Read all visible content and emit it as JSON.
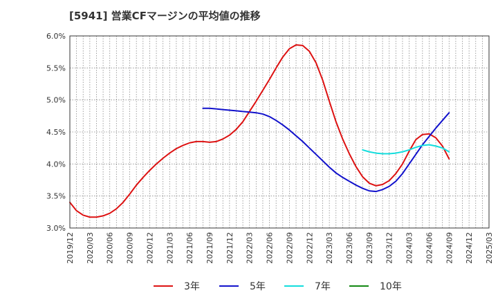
{
  "chart_data": {
    "type": "line",
    "title": "[5941]  営業CFマージンの平均値の推移",
    "xlabel": "",
    "ylabel": "",
    "ylim": [
      3.0,
      6.0
    ],
    "yticks": [
      3.0,
      3.5,
      4.0,
      4.5,
      5.0,
      5.5,
      6.0
    ],
    "ytick_labels": [
      "3.0%",
      "3.5%",
      "4.0%",
      "4.5%",
      "5.0%",
      "5.5%",
      "6.0%"
    ],
    "xlim": [
      "2019/12",
      "2025/03"
    ],
    "xtick_labels": [
      "2019/12",
      "2020/03",
      "2020/06",
      "2020/09",
      "2020/12",
      "2021/03",
      "2021/06",
      "2021/09",
      "2021/12",
      "2022/03",
      "2022/06",
      "2022/09",
      "2022/12",
      "2023/03",
      "2023/06",
      "2023/09",
      "2023/12",
      "2024/03",
      "2024/06",
      "2024/09",
      "2024/12",
      "2025/03"
    ],
    "grid": true,
    "legend_position": "bottom",
    "series": [
      {
        "name": "3年",
        "color": "#dd1111",
        "x": [
          "2019/12",
          "2020/01",
          "2020/02",
          "2020/03",
          "2020/04",
          "2020/05",
          "2020/06",
          "2020/07",
          "2020/08",
          "2020/09",
          "2020/10",
          "2020/11",
          "2020/12",
          "2021/01",
          "2021/02",
          "2021/03",
          "2021/04",
          "2021/05",
          "2021/06",
          "2021/07",
          "2021/08",
          "2021/09",
          "2021/10",
          "2021/11",
          "2021/12",
          "2022/01",
          "2022/02",
          "2022/03",
          "2022/04",
          "2022/05",
          "2022/06",
          "2022/07",
          "2022/08",
          "2022/09",
          "2022/10",
          "2022/11",
          "2022/12",
          "2023/01",
          "2023/02",
          "2023/03",
          "2023/04",
          "2023/05",
          "2023/06",
          "2023/07",
          "2023/08",
          "2023/09",
          "2023/10",
          "2023/11",
          "2023/12",
          "2024/01",
          "2024/02",
          "2024/03",
          "2024/04",
          "2024/05",
          "2024/06",
          "2024/07",
          "2024/08",
          "2024/09"
        ],
        "values": [
          3.4,
          3.27,
          3.2,
          3.17,
          3.17,
          3.19,
          3.23,
          3.3,
          3.4,
          3.53,
          3.67,
          3.79,
          3.9,
          4.0,
          4.09,
          4.17,
          4.24,
          4.29,
          4.33,
          4.35,
          4.35,
          4.34,
          4.35,
          4.39,
          4.45,
          4.54,
          4.66,
          4.82,
          4.98,
          5.15,
          5.32,
          5.5,
          5.67,
          5.8,
          5.86,
          5.85,
          5.76,
          5.58,
          5.31,
          4.98,
          4.66,
          4.39,
          4.16,
          3.96,
          3.8,
          3.7,
          3.66,
          3.68,
          3.74,
          3.85,
          4.0,
          4.2,
          4.38,
          4.46,
          4.47,
          4.41,
          4.28,
          4.08
        ]
      },
      {
        "name": "5年",
        "color": "#1111cc",
        "x": [
          "2021/08",
          "2021/09",
          "2021/10",
          "2021/11",
          "2021/12",
          "2022/01",
          "2022/02",
          "2022/03",
          "2022/04",
          "2022/05",
          "2022/06",
          "2022/07",
          "2022/08",
          "2022/09",
          "2022/10",
          "2022/11",
          "2022/12",
          "2023/01",
          "2023/02",
          "2023/03",
          "2023/04",
          "2023/05",
          "2023/06",
          "2023/07",
          "2023/08",
          "2023/09",
          "2023/10",
          "2023/11",
          "2023/12",
          "2024/01",
          "2024/02",
          "2024/03",
          "2024/04",
          "2024/05",
          "2024/06",
          "2024/07",
          "2024/08",
          "2024/09"
        ],
        "values": [
          4.87,
          4.87,
          4.86,
          4.85,
          4.84,
          4.83,
          4.82,
          4.81,
          4.8,
          4.78,
          4.74,
          4.68,
          4.61,
          4.53,
          4.44,
          4.35,
          4.25,
          4.15,
          4.05,
          3.95,
          3.86,
          3.79,
          3.73,
          3.67,
          3.62,
          3.58,
          3.57,
          3.6,
          3.65,
          3.73,
          3.85,
          4.0,
          4.15,
          4.3,
          4.43,
          4.56,
          4.68,
          4.8
        ]
      },
      {
        "name": "7年",
        "color": "#11dddd",
        "x": [
          "2023/08",
          "2023/09",
          "2023/10",
          "2023/11",
          "2023/12",
          "2024/01",
          "2024/02",
          "2024/03",
          "2024/04",
          "2024/05",
          "2024/06",
          "2024/07",
          "2024/08",
          "2024/09"
        ],
        "values": [
          4.22,
          4.19,
          4.17,
          4.16,
          4.16,
          4.17,
          4.19,
          4.22,
          4.26,
          4.29,
          4.3,
          4.28,
          4.25,
          4.19
        ]
      },
      {
        "name": "10年",
        "color": "#118811",
        "x": [],
        "values": []
      }
    ]
  }
}
